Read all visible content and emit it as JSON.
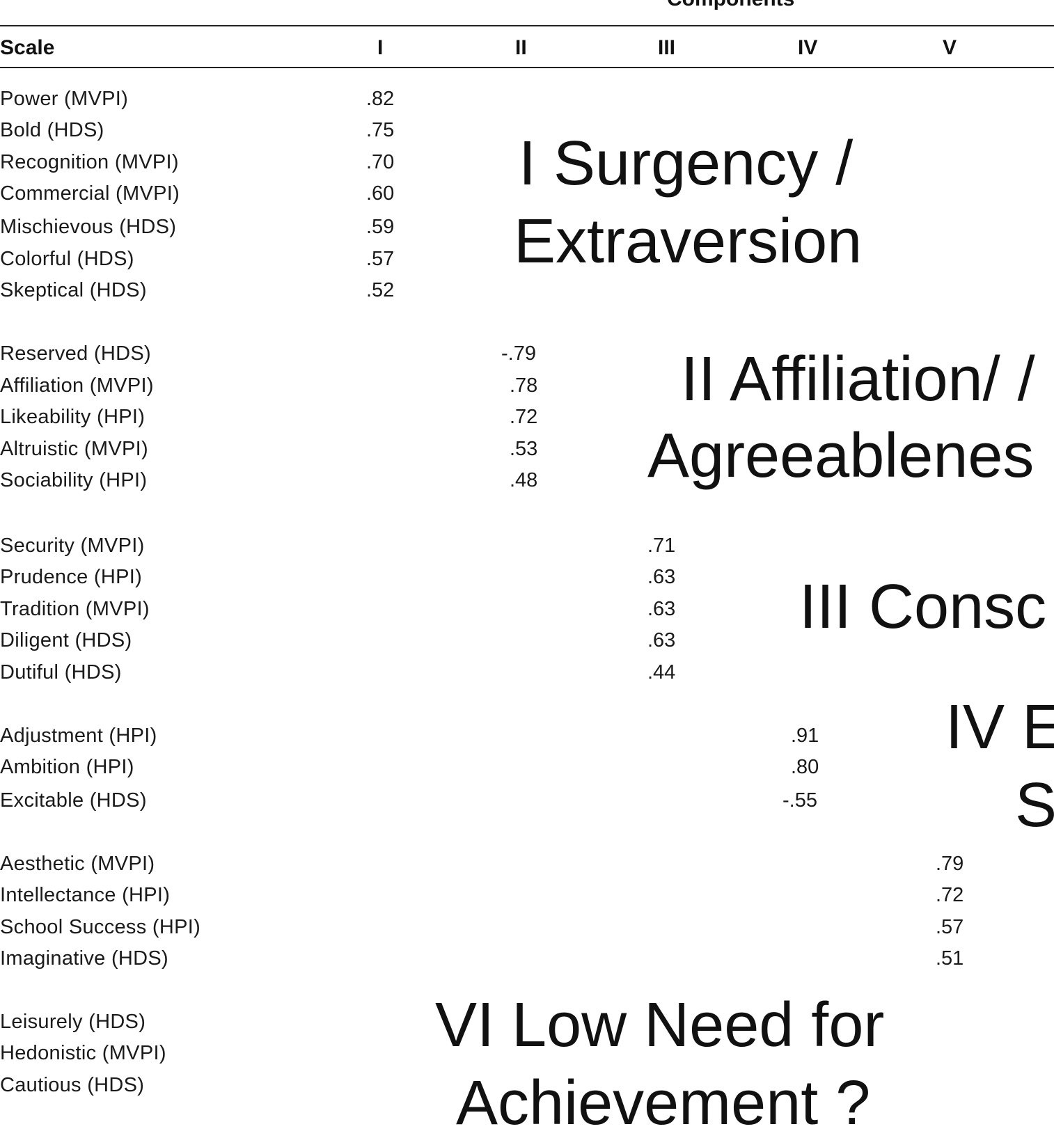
{
  "table": {
    "header_top": "Components",
    "columns": [
      "Scale",
      "I",
      "II",
      "III",
      "IV",
      "V"
    ],
    "groups": [
      {
        "rows": [
          {
            "scale": "Power (MVPI)",
            "value": ".82"
          },
          {
            "scale": "Bold (HDS)",
            "value": ".75"
          },
          {
            "scale": "Recognition (MVPI)",
            "value": ".70"
          },
          {
            "scale": "Commercial (MVPI)",
            "value": ".60"
          },
          {
            "scale": "Mischievous (HDS)",
            "value": ".59"
          },
          {
            "scale": "Colorful (HDS)",
            "value": ".57"
          },
          {
            "scale": "Skeptical (HDS)",
            "value": ".52"
          }
        ]
      },
      {
        "rows": [
          {
            "scale": "Reserved (HDS)",
            "value": "-.79"
          },
          {
            "scale": "Affiliation (MVPI)",
            "value": ".78"
          },
          {
            "scale": "Likeability (HPI)",
            "value": ".72"
          },
          {
            "scale": "Altruistic (MVPI)",
            "value": ".53"
          },
          {
            "scale": "Sociability (HPI)",
            "value": ".48"
          }
        ]
      },
      {
        "rows": [
          {
            "scale": "Security (MVPI)",
            "value": ".71"
          },
          {
            "scale": "Prudence (HPI)",
            "value": ".63"
          },
          {
            "scale": "Tradition (MVPI)",
            "value": ".63"
          },
          {
            "scale": "Diligent (HDS)",
            "value": ".63"
          },
          {
            "scale": "Dutiful (HDS)",
            "value": ".44"
          }
        ]
      },
      {
        "rows": [
          {
            "scale": "Adjustment (HPI)",
            "value": ".91"
          },
          {
            "scale": "Ambition (HPI)",
            "value": ".80"
          },
          {
            "scale": "Excitable (HDS)",
            "value": "-.55"
          }
        ]
      },
      {
        "rows": [
          {
            "scale": "Aesthetic (MVPI)",
            "value": ".79"
          },
          {
            "scale": "Intellectance (HPI)",
            "value": ".72"
          },
          {
            "scale": "School Success (HPI)",
            "value": ".57"
          },
          {
            "scale": "Imaginative (HDS)",
            "value": ".51"
          }
        ]
      },
      {
        "rows": [
          {
            "scale": "Leisurely (HDS)",
            "value": ""
          },
          {
            "scale": "Hedonistic  (MVPI)",
            "value": ""
          },
          {
            "scale": "Cautious (HDS)",
            "value": ""
          }
        ]
      }
    ]
  },
  "annotations": [
    {
      "line1": "I Surgency /",
      "line2": "Extraversion"
    },
    {
      "line1": "II Affiliation/ /",
      "line2": "Agreeablenes"
    },
    {
      "line1": "III Consc",
      "line2": ""
    },
    {
      "line1": "IV E",
      "line2": "S"
    },
    {
      "line1": "VI Low Need for",
      "line2": "Achievement ?"
    }
  ]
}
